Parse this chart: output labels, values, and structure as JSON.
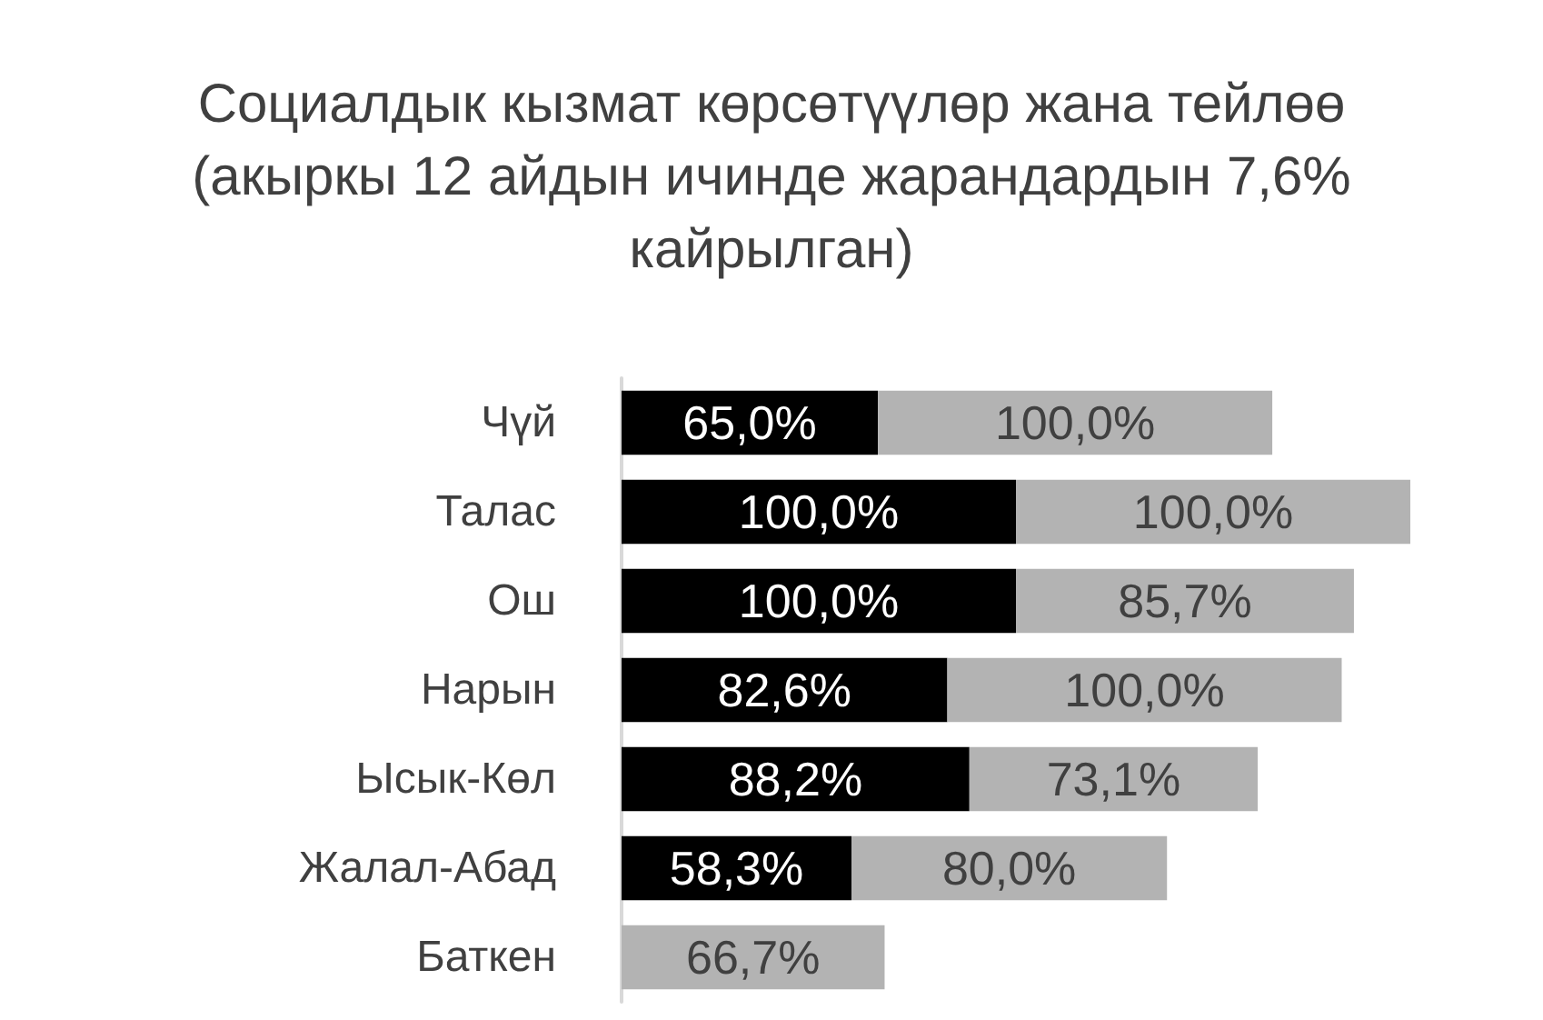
{
  "chart_data": {
    "type": "bar",
    "orientation": "horizontal",
    "stacked": true,
    "title": "Социалдык кызмат көрсөтүүлөр жана тейлөө (акыркы 12 айдын ичинде жарандардын 7,6% кайрылган)",
    "categories": [
      "Чүй",
      "Талас",
      "Ош",
      "Нарын",
      "Ысык-Көл",
      "Жалал-Абад",
      "Баткен"
    ],
    "series": [
      {
        "color": "#000000",
        "values": [
          65.0,
          100.0,
          100.0,
          82.6,
          88.2,
          58.3,
          null
        ],
        "value_labels": [
          "65,0%",
          "100,0%",
          "100,0%",
          "82,6%",
          "88,2%",
          "58,3%",
          null
        ]
      },
      {
        "color": "#b3b3b3",
        "values": [
          100.0,
          100.0,
          85.7,
          100.0,
          73.1,
          80.0,
          66.7
        ],
        "value_labels": [
          "100,0%",
          "100,0%",
          "85,7%",
          "100,0%",
          "73,1%",
          "80,0%",
          "66,7%"
        ]
      }
    ]
  }
}
